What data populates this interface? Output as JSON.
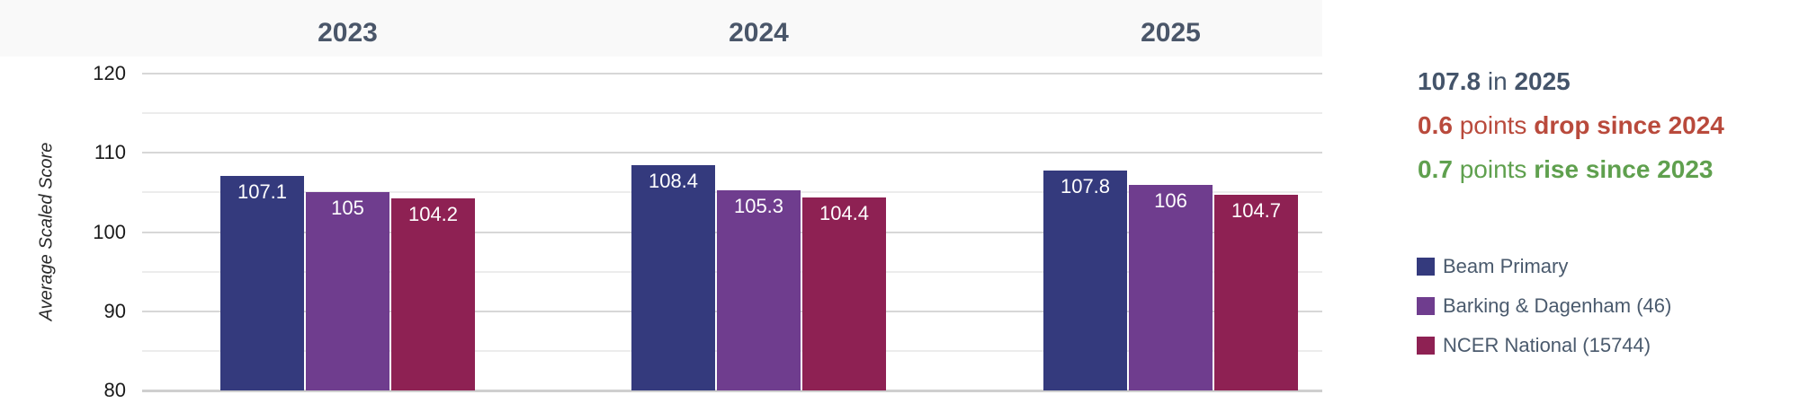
{
  "chart_data": {
    "type": "bar",
    "title": "",
    "categories": [
      "2023",
      "2024",
      "2025"
    ],
    "series": [
      {
        "name": "Beam Primary",
        "color": "#343a7d",
        "values": [
          107.1,
          108.4,
          107.8
        ]
      },
      {
        "name": "Barking & Dagenham (46)",
        "color": "#6f3d8e",
        "values": [
          105,
          105.3,
          106
        ]
      },
      {
        "name": "NCER National (15744)",
        "color": "#8e2153",
        "values": [
          104.2,
          104.4,
          104.7
        ]
      }
    ],
    "xlabel": "",
    "ylabel": "Average Scaled Score",
    "ylim": [
      80,
      120
    ],
    "yticks": [
      80,
      90,
      100,
      110,
      120
    ],
    "minor_gridline_step": 5,
    "grid": true,
    "bar_value_labels": true,
    "legend_position": "right"
  },
  "summary": {
    "headline": {
      "value": "107.8",
      "connector": "in",
      "year": "2025",
      "color": "#44546a"
    },
    "changes": [
      {
        "value": "0.6",
        "unit_word": "points",
        "description": "drop since 2024",
        "direction": "drop",
        "color": "#b94a3c"
      },
      {
        "value": "0.7",
        "unit_word": "points",
        "description": "rise since 2023",
        "direction": "rise",
        "color": "#5fa04e"
      }
    ]
  },
  "colors": {
    "header_band_bg": "#f9f9f9",
    "year_label": "#4a5669",
    "gridline_major": "#d7d7d7",
    "gridline_minor": "#ececec",
    "tick_label": "#1a1a1a",
    "bar_value_label": "#ffffff",
    "legend_text": "#4a5a6d"
  }
}
